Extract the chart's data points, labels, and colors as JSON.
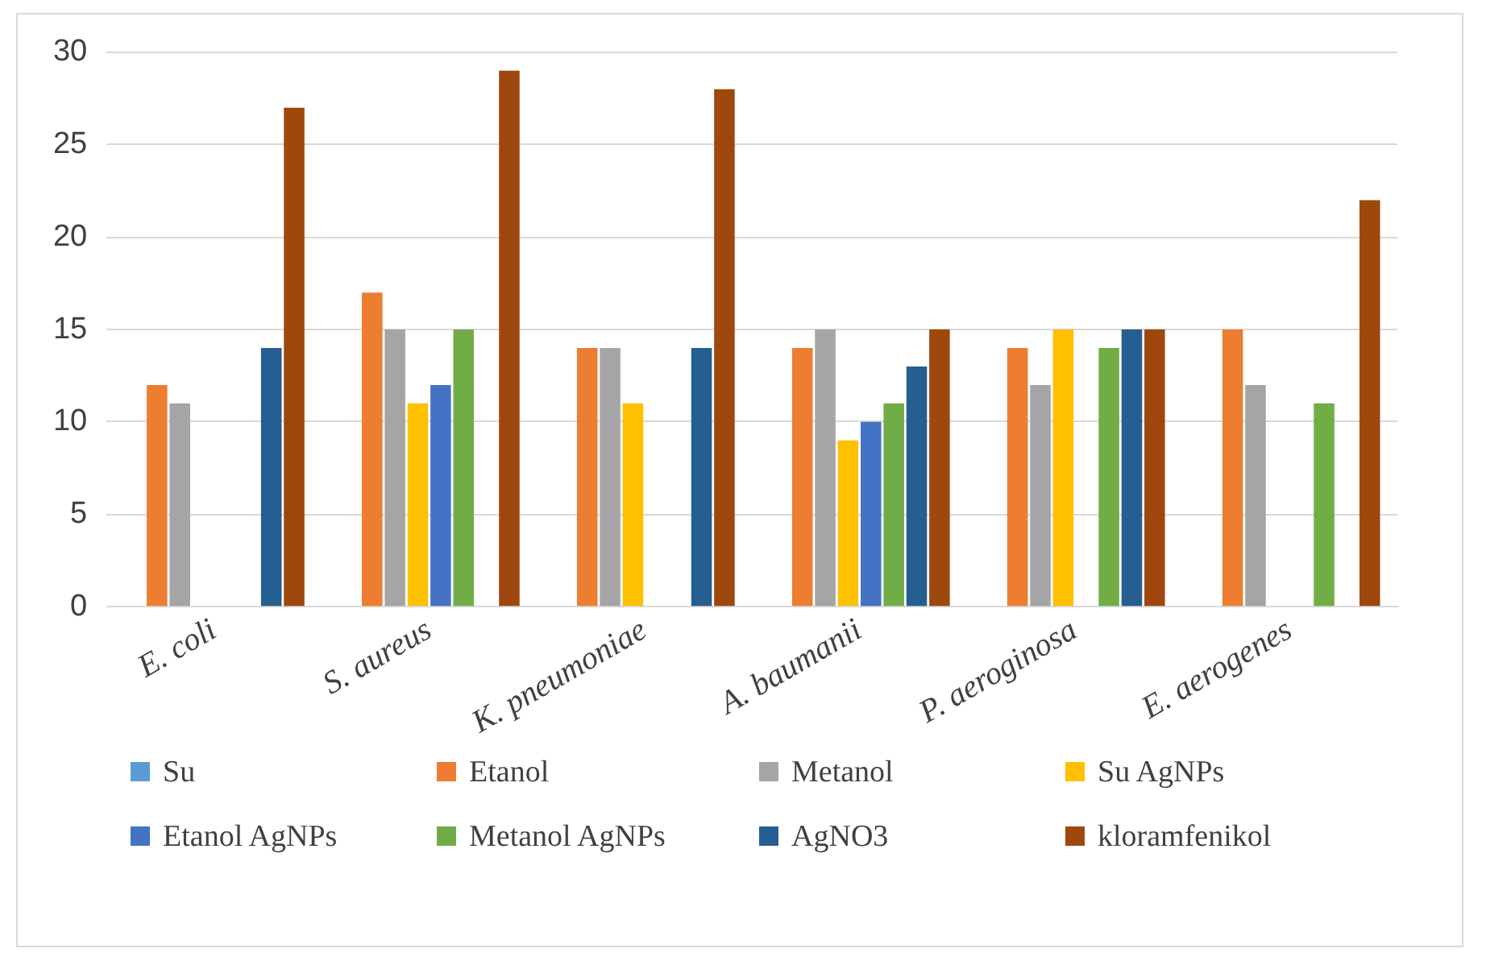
{
  "chart_data": {
    "type": "bar",
    "categories": [
      "E. coli",
      "S. aureus",
      "K. pneumoniae",
      "A. baumanii",
      "P. aeroginosa",
      "E. aerogenes"
    ],
    "series": [
      {
        "name": "Su",
        "color": "#5b9bd5",
        "values": [
          0,
          0,
          0,
          0,
          0,
          0
        ]
      },
      {
        "name": "Etanol",
        "color": "#ed7d31",
        "values": [
          12,
          17,
          14,
          14,
          14,
          15
        ]
      },
      {
        "name": "Metanol",
        "color": "#a5a5a5",
        "values": [
          11,
          15,
          14,
          15,
          12,
          12
        ]
      },
      {
        "name": "Su AgNPs",
        "color": "#ffc000",
        "values": [
          0,
          11,
          11,
          9,
          15,
          0
        ]
      },
      {
        "name": "Etanol AgNPs",
        "color": "#4472c4",
        "values": [
          0,
          12,
          0,
          10,
          0,
          0
        ]
      },
      {
        "name": "Metanol AgNPs",
        "color": "#70ad47",
        "values": [
          0,
          15,
          0,
          11,
          14,
          11
        ]
      },
      {
        "name": "AgNO3",
        "color": "#255e91",
        "values": [
          14,
          0,
          14,
          13,
          15,
          0
        ]
      },
      {
        "name": "kloramfenikol",
        "color": "#9e480e",
        "values": [
          27,
          29,
          28,
          15,
          15,
          22
        ]
      }
    ],
    "ylim": [
      0,
      30
    ],
    "yticks": [
      0,
      5,
      10,
      15,
      20,
      25,
      30
    ],
    "grid": "y",
    "legend": "bottom"
  }
}
